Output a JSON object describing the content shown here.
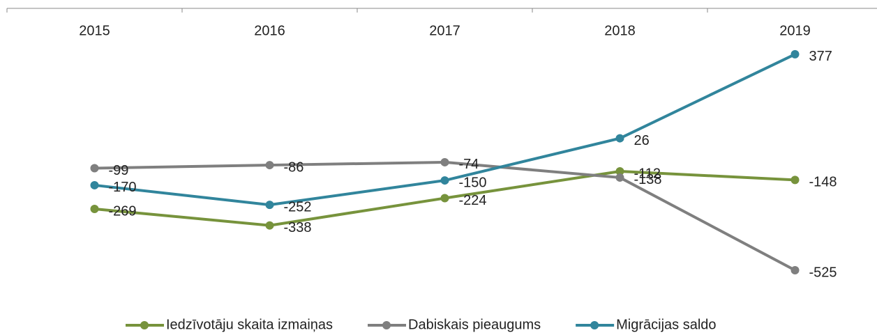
{
  "chart_data": {
    "type": "line",
    "categories": [
      "2015",
      "2016",
      "2017",
      "2018",
      "2019"
    ],
    "series": [
      {
        "name": "Iedzīvotāju skaita izmaiņas",
        "color": "#77933c",
        "values": [
          -269,
          -338,
          -224,
          -112,
          -148
        ]
      },
      {
        "name": "Dabiskais pieaugums",
        "color": "#7f7f7f",
        "values": [
          -99,
          -86,
          -74,
          -138,
          -525
        ]
      },
      {
        "name": "Migrācijas saldo",
        "color": "#31859c",
        "values": [
          -170,
          -252,
          -150,
          26,
          377
        ]
      }
    ],
    "ylim": [
      -560,
      400
    ],
    "legend": "bottom"
  }
}
